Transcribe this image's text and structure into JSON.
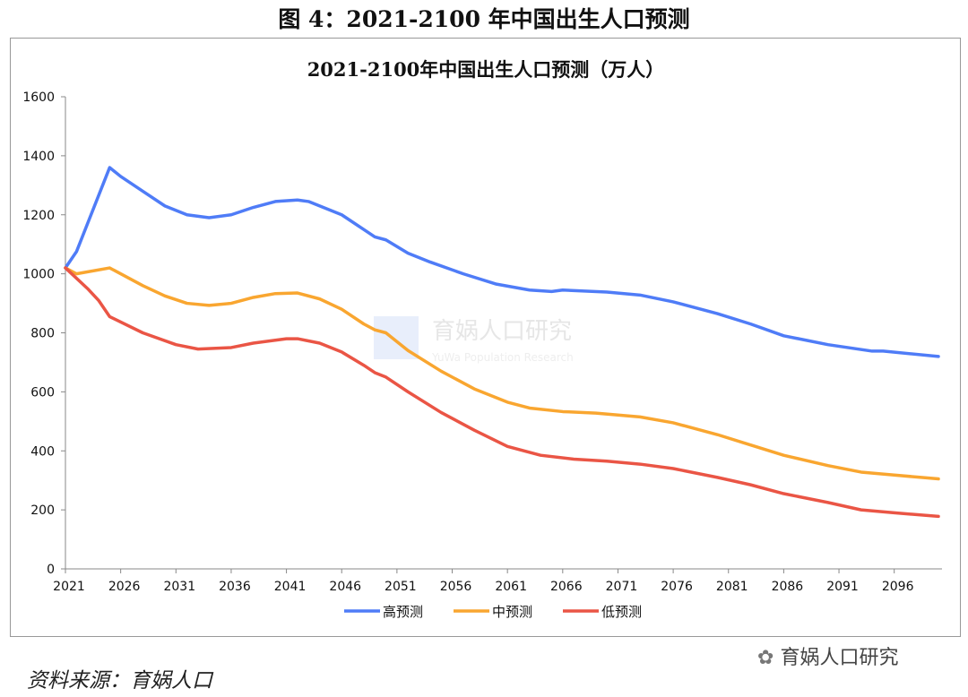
{
  "figure_title": "图 4：2021-2100 年中国出生人口预测",
  "source": "资料来源：育娲人口",
  "watermark": {
    "text": "育娲人口研究",
    "center_text": "育娲人口研究",
    "center_sub": "YuWa Population Research"
  },
  "chart_data": {
    "type": "line",
    "title": "2021-2100年中国出生人口预测（万人）",
    "xlabel": "",
    "ylabel": "",
    "xlim": [
      2021,
      2100
    ],
    "ylim": [
      0,
      1600
    ],
    "yticks": [
      0,
      200,
      400,
      600,
      800,
      1000,
      1200,
      1400,
      1600
    ],
    "xticks": [
      2021,
      2026,
      2031,
      2036,
      2041,
      2046,
      2051,
      2056,
      2061,
      2066,
      2071,
      2076,
      2081,
      2086,
      2091,
      2096
    ],
    "grid": false,
    "legend": "bottom",
    "series": [
      {
        "name": "高预测",
        "color": "#4f7cf7",
        "points": [
          [
            2021,
            1020
          ],
          [
            2022,
            1075
          ],
          [
            2025,
            1360
          ],
          [
            2026,
            1330
          ],
          [
            2028,
            1280
          ],
          [
            2030,
            1230
          ],
          [
            2032,
            1200
          ],
          [
            2034,
            1190
          ],
          [
            2036,
            1200
          ],
          [
            2038,
            1225
          ],
          [
            2040,
            1245
          ],
          [
            2042,
            1250
          ],
          [
            2043,
            1245
          ],
          [
            2046,
            1200
          ],
          [
            2048,
            1150
          ],
          [
            2049,
            1125
          ],
          [
            2050,
            1115
          ],
          [
            2052,
            1070
          ],
          [
            2054,
            1040
          ],
          [
            2057,
            1000
          ],
          [
            2060,
            965
          ],
          [
            2063,
            945
          ],
          [
            2065,
            940
          ],
          [
            2066,
            945
          ],
          [
            2070,
            938
          ],
          [
            2073,
            928
          ],
          [
            2076,
            905
          ],
          [
            2080,
            865
          ],
          [
            2083,
            830
          ],
          [
            2086,
            790
          ],
          [
            2090,
            760
          ],
          [
            2094,
            738
          ],
          [
            2095,
            738
          ],
          [
            2100,
            720
          ]
        ]
      },
      {
        "name": "中预测",
        "color": "#f9a630",
        "points": [
          [
            2021,
            1020
          ],
          [
            2022,
            1000
          ],
          [
            2025,
            1020
          ],
          [
            2028,
            960
          ],
          [
            2030,
            925
          ],
          [
            2032,
            900
          ],
          [
            2034,
            893
          ],
          [
            2036,
            900
          ],
          [
            2038,
            920
          ],
          [
            2040,
            933
          ],
          [
            2042,
            935
          ],
          [
            2044,
            915
          ],
          [
            2046,
            880
          ],
          [
            2048,
            830
          ],
          [
            2049,
            810
          ],
          [
            2050,
            800
          ],
          [
            2052,
            740
          ],
          [
            2055,
            670
          ],
          [
            2058,
            610
          ],
          [
            2061,
            565
          ],
          [
            2063,
            545
          ],
          [
            2066,
            533
          ],
          [
            2069,
            528
          ],
          [
            2073,
            515
          ],
          [
            2076,
            495
          ],
          [
            2080,
            455
          ],
          [
            2083,
            420
          ],
          [
            2086,
            385
          ],
          [
            2090,
            350
          ],
          [
            2093,
            328
          ],
          [
            2096,
            318
          ],
          [
            2100,
            305
          ]
        ]
      },
      {
        "name": "低预测",
        "color": "#ea5545",
        "points": [
          [
            2021,
            1020
          ],
          [
            2023,
            950
          ],
          [
            2024,
            910
          ],
          [
            2025,
            855
          ],
          [
            2028,
            800
          ],
          [
            2031,
            760
          ],
          [
            2033,
            745
          ],
          [
            2036,
            750
          ],
          [
            2038,
            765
          ],
          [
            2041,
            780
          ],
          [
            2042,
            780
          ],
          [
            2044,
            765
          ],
          [
            2046,
            735
          ],
          [
            2048,
            690
          ],
          [
            2049,
            665
          ],
          [
            2050,
            650
          ],
          [
            2052,
            600
          ],
          [
            2055,
            530
          ],
          [
            2058,
            470
          ],
          [
            2061,
            415
          ],
          [
            2064,
            385
          ],
          [
            2067,
            372
          ],
          [
            2070,
            365
          ],
          [
            2073,
            355
          ],
          [
            2076,
            340
          ],
          [
            2080,
            310
          ],
          [
            2083,
            285
          ],
          [
            2086,
            255
          ],
          [
            2090,
            225
          ],
          [
            2093,
            200
          ],
          [
            2096,
            190
          ],
          [
            2100,
            178
          ]
        ]
      }
    ]
  }
}
